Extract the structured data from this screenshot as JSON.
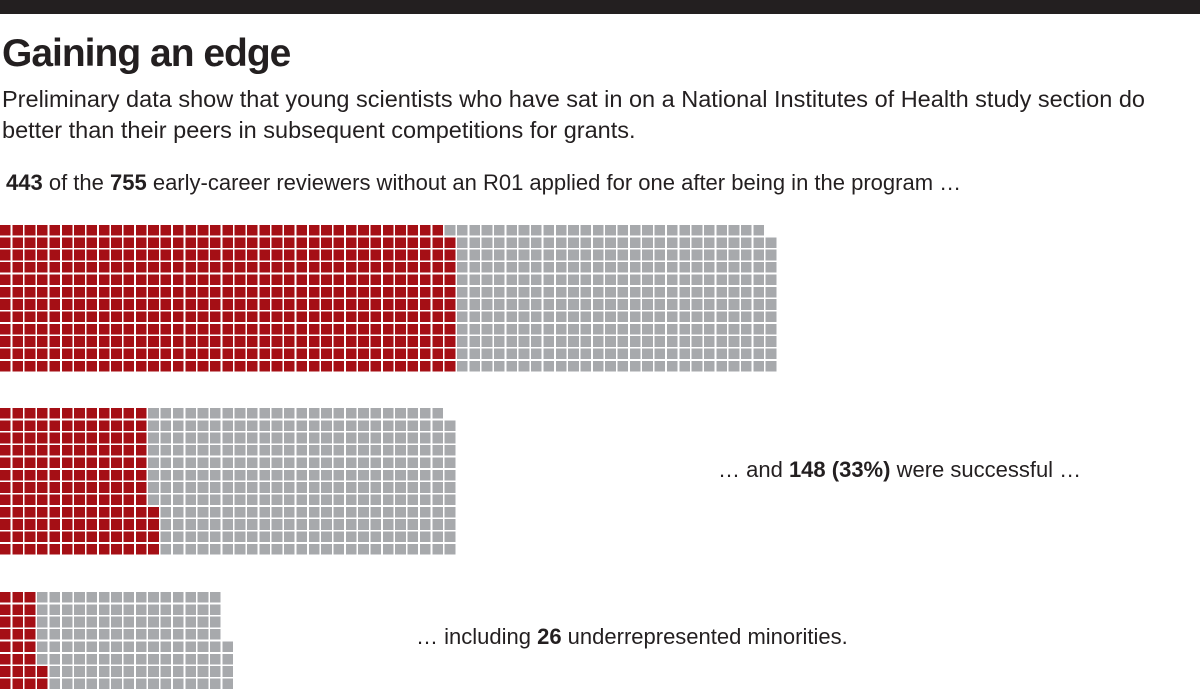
{
  "title": "Gaining an edge",
  "subtitle": "Preliminary data show that young scientists who have sat in on a National Institutes of Health study section do better than their peers in subsequent competitions for grants.",
  "captions": {
    "applied": {
      "count": "443",
      "mid": " of the ",
      "total": "755",
      "rest": " early-career reviewers without an R01 applied for one after being in the program …"
    },
    "successful": {
      "lead": "… and ",
      "count": "148 (33%)",
      "rest": " were successful …"
    },
    "minorities": {
      "lead": "… including ",
      "count": "26",
      "rest": " underrepresented minorities."
    }
  },
  "colors": {
    "highlight": "#a50f15",
    "base": "#a7a9ac",
    "text": "#231f20"
  },
  "chart_data": [
    {
      "type": "waffle",
      "name": "applied",
      "total": 755,
      "highlighted": 443,
      "label": "443 of the 755 early-career reviewers without an R01 applied for one after being in the program …"
    },
    {
      "type": "waffle",
      "name": "successful",
      "total": 443,
      "highlighted": 148,
      "percent": 33,
      "label": "… and 148 (33%) were successful …"
    },
    {
      "type": "waffle",
      "name": "minorities",
      "total": 148,
      "highlighted": 26,
      "label": "… including 26 underrepresented minorities."
    }
  ]
}
